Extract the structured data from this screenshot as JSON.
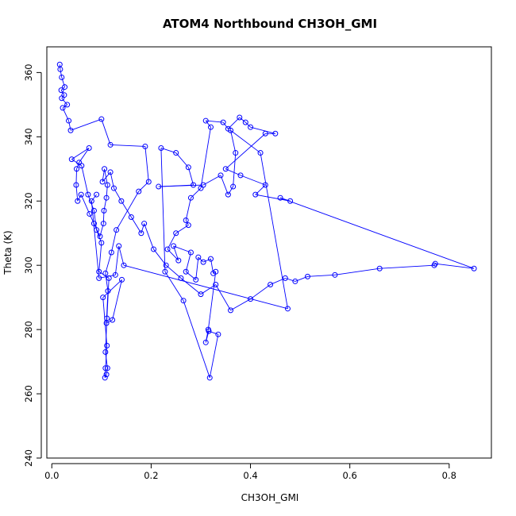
{
  "chart_data": {
    "type": "line",
    "title": "ATOM4 Northbound CH3OH_GMI",
    "xlabel": "CH3OH_GMI",
    "ylabel": "Theta (K)",
    "xlim": [
      -0.01,
      0.885
    ],
    "ylim": [
      240,
      368
    ],
    "xticks": [
      "0.0",
      "0.2",
      "0.4",
      "0.6",
      "0.8"
    ],
    "yticks": [
      "240",
      "260",
      "280",
      "300",
      "320",
      "340",
      "360"
    ],
    "grid": false,
    "legend": "none",
    "series": [
      {
        "color": "#0000ff",
        "marker": "open-circle",
        "points": [
          [
            0.016,
            362.5
          ],
          [
            0.017,
            361.0
          ],
          [
            0.02,
            358.5
          ],
          [
            0.026,
            355.5
          ],
          [
            0.019,
            354.5
          ],
          [
            0.025,
            353.0
          ],
          [
            0.02,
            352.0
          ],
          [
            0.031,
            350.0
          ],
          [
            0.022,
            349.0
          ],
          [
            0.034,
            345.0
          ],
          [
            0.038,
            342.0
          ],
          [
            0.1,
            345.5
          ],
          [
            0.118,
            337.5
          ],
          [
            0.188,
            337.0
          ],
          [
            0.195,
            326.0
          ],
          [
            0.175,
            323.0
          ],
          [
            0.13,
            311.0
          ],
          [
            0.12,
            304.0
          ],
          [
            0.108,
            297.5
          ],
          [
            0.113,
            292.0
          ],
          [
            0.11,
            282.0
          ],
          [
            0.122,
            283.0
          ],
          [
            0.141,
            295.5
          ],
          [
            0.103,
            290.0
          ],
          [
            0.111,
            275.0
          ],
          [
            0.108,
            268.0
          ],
          [
            0.107,
            265.0
          ],
          [
            0.11,
            266.0
          ],
          [
            0.112,
            268.0
          ],
          [
            0.108,
            273.0
          ],
          [
            0.111,
            283.5
          ],
          [
            0.115,
            296.0
          ],
          [
            0.095,
            298.0
          ],
          [
            0.1,
            307.0
          ],
          [
            0.09,
            311.0
          ],
          [
            0.085,
            317.0
          ],
          [
            0.073,
            322.0
          ],
          [
            0.06,
            331.0
          ],
          [
            0.04,
            333.0
          ],
          [
            0.075,
            336.5
          ],
          [
            0.055,
            332.0
          ],
          [
            0.05,
            330.0
          ],
          [
            0.049,
            325.0
          ],
          [
            0.052,
            320.0
          ],
          [
            0.059,
            322.0
          ],
          [
            0.076,
            316.0
          ],
          [
            0.085,
            313.0
          ],
          [
            0.097,
            309.0
          ],
          [
            0.104,
            313.0
          ],
          [
            0.105,
            317.0
          ],
          [
            0.11,
            321.0
          ],
          [
            0.112,
            325.0
          ],
          [
            0.106,
            330.0
          ],
          [
            0.102,
            326.0
          ],
          [
            0.118,
            329.0
          ],
          [
            0.125,
            324.0
          ],
          [
            0.14,
            320.0
          ],
          [
            0.16,
            315.0
          ],
          [
            0.18,
            310.0
          ],
          [
            0.186,
            313.0
          ],
          [
            0.205,
            305.0
          ],
          [
            0.23,
            300.0
          ],
          [
            0.26,
            296.0
          ],
          [
            0.3,
            291.0
          ],
          [
            0.33,
            294.0
          ],
          [
            0.36,
            286.0
          ],
          [
            0.4,
            289.5
          ],
          [
            0.44,
            294.0
          ],
          [
            0.47,
            296.0
          ],
          [
            0.49,
            295.0
          ],
          [
            0.515,
            296.5
          ],
          [
            0.57,
            297.0
          ],
          [
            0.66,
            299.0
          ],
          [
            0.77,
            300.0
          ],
          [
            0.772,
            300.5
          ],
          [
            0.85,
            299.0
          ],
          [
            0.46,
            321.0
          ],
          [
            0.48,
            320.0
          ],
          [
            0.41,
            322.0
          ],
          [
            0.43,
            325.0
          ],
          [
            0.38,
            328.0
          ],
          [
            0.35,
            330.0
          ],
          [
            0.43,
            341.0
          ],
          [
            0.45,
            341.0
          ],
          [
            0.4,
            343.0
          ],
          [
            0.39,
            344.5
          ],
          [
            0.378,
            346.0
          ],
          [
            0.355,
            342.5
          ],
          [
            0.345,
            344.5
          ],
          [
            0.31,
            345.0
          ],
          [
            0.32,
            343.0
          ],
          [
            0.3,
            324.0
          ],
          [
            0.28,
            321.0
          ],
          [
            0.27,
            314.0
          ],
          [
            0.275,
            312.5
          ],
          [
            0.25,
            310.0
          ],
          [
            0.233,
            305.0
          ],
          [
            0.255,
            301.5
          ],
          [
            0.245,
            306.0
          ],
          [
            0.28,
            304.0
          ],
          [
            0.27,
            298.0
          ],
          [
            0.29,
            295.5
          ],
          [
            0.295,
            302.5
          ],
          [
            0.305,
            301.0
          ],
          [
            0.32,
            302.0
          ],
          [
            0.325,
            297.5
          ],
          [
            0.33,
            298.0
          ],
          [
            0.315,
            280.0
          ],
          [
            0.31,
            276.0
          ],
          [
            0.316,
            279.5
          ],
          [
            0.335,
            278.5
          ],
          [
            0.318,
            265.0
          ],
          [
            0.265,
            289.0
          ],
          [
            0.228,
            298.0
          ],
          [
            0.22,
            336.5
          ],
          [
            0.25,
            335.0
          ],
          [
            0.275,
            330.5
          ],
          [
            0.285,
            325.0
          ],
          [
            0.215,
            324.5
          ],
          [
            0.305,
            325.0
          ],
          [
            0.34,
            328.0
          ],
          [
            0.355,
            322.0
          ],
          [
            0.365,
            324.5
          ],
          [
            0.37,
            335.0
          ],
          [
            0.36,
            342.0
          ],
          [
            0.42,
            335.0
          ],
          [
            0.475,
            286.5
          ],
          [
            0.145,
            300.0
          ],
          [
            0.135,
            306.0
          ],
          [
            0.128,
            297.0
          ],
          [
            0.095,
            296.0
          ],
          [
            0.08,
            320.0
          ],
          [
            0.09,
            322.0
          ]
        ]
      }
    ]
  }
}
